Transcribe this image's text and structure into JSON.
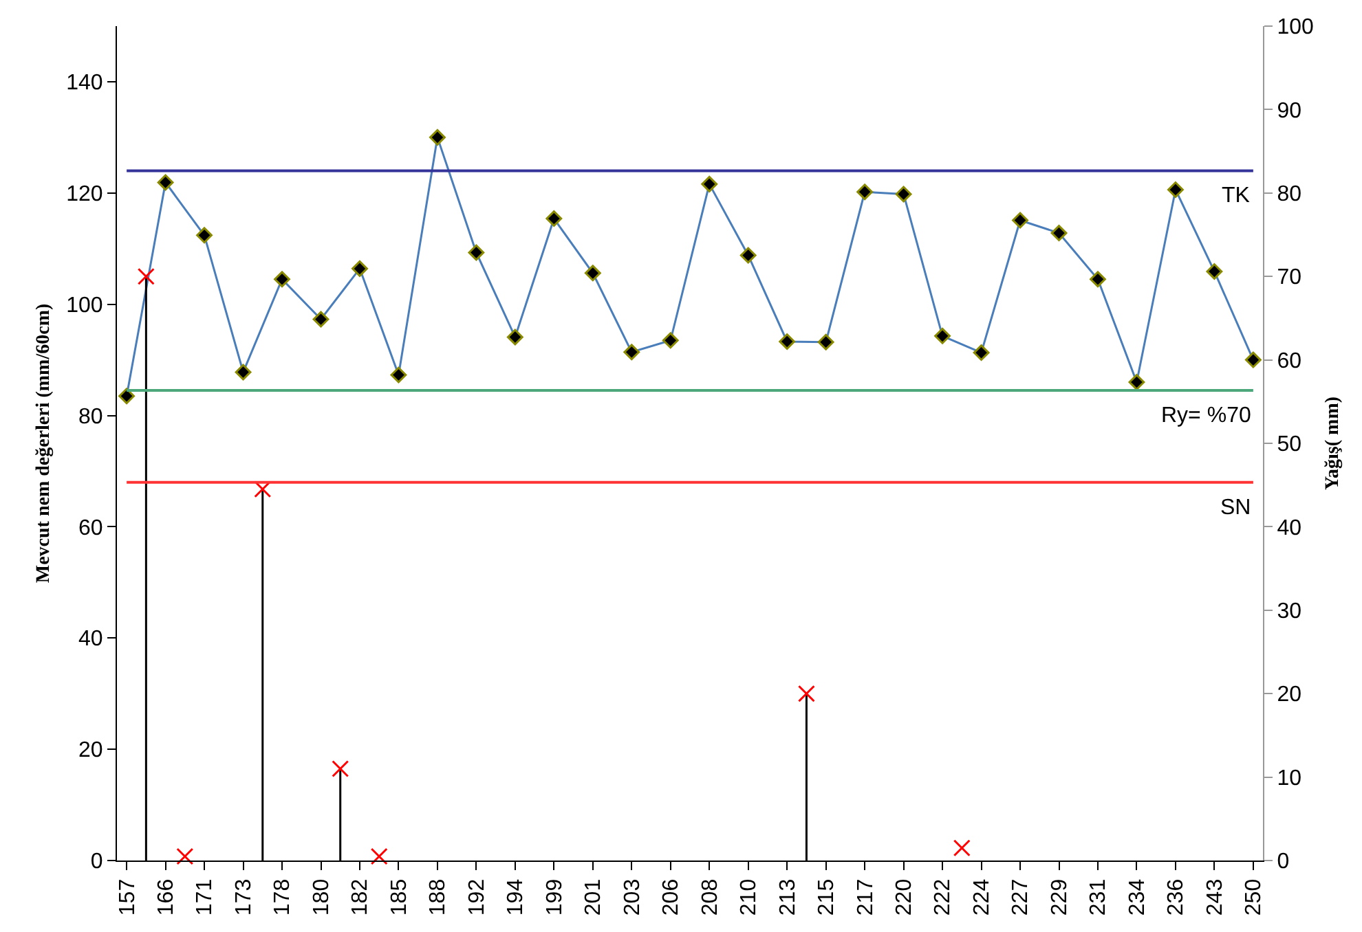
{
  "chart_data": {
    "type": "line",
    "ylabel": "Mevcut nem değerleri (mm/60cm)",
    "y2label": "Yağış( mm)",
    "categories": [
      "157",
      null,
      "166",
      null,
      "171",
      null,
      "173",
      null,
      "178",
      null,
      "180",
      null,
      "182",
      null,
      "185",
      null,
      "188",
      null,
      "192",
      null,
      "194",
      null,
      "199",
      null,
      "201",
      null,
      "203",
      null,
      "206",
      null,
      "208",
      null,
      "210",
      null,
      "213",
      null,
      "215",
      null,
      "217",
      null,
      "220",
      null,
      "222",
      null,
      "224",
      null,
      "227",
      null,
      "229",
      null,
      "231",
      null,
      "234",
      null,
      "236",
      null,
      "243",
      null,
      "250"
    ],
    "ylim": [
      0,
      150
    ],
    "yticks": [
      0,
      20,
      40,
      60,
      80,
      100,
      120,
      140
    ],
    "y2lim": [
      0,
      100
    ],
    "y2ticks": [
      0,
      10,
      20,
      30,
      40,
      50,
      60,
      70,
      80,
      90,
      100
    ],
    "series": [
      {
        "color": "#4a7ebb",
        "marker": "diamond",
        "x": [
          "157",
          "166",
          "171",
          "173",
          "178",
          "180",
          "182",
          "185",
          "188",
          "192",
          "194",
          "199",
          "201",
          "203",
          "206",
          "208",
          "210",
          "213",
          "215",
          "217",
          "220",
          "222",
          "224",
          "227",
          "229",
          "231",
          "234",
          "236",
          "243",
          "250"
        ],
        "values": [
          83.5,
          121.9,
          112.4,
          87.8,
          104.5,
          97.3,
          106.4,
          87.3,
          130.0,
          109.3,
          94.1,
          115.4,
          105.6,
          91.4,
          93.5,
          121.6,
          108.8,
          93.3,
          93.2,
          120.2,
          119.8,
          94.3,
          91.3,
          115.1,
          112.8,
          104.5,
          86.0,
          120.6,
          105.9,
          90.0
        ]
      },
      {
        "type": "scatter",
        "axis": "y2",
        "color": "#ff0000",
        "marker": "cross",
        "values": [
          null,
          70,
          null,
          0.5,
          null,
          null,
          null,
          44.5,
          null,
          null,
          null,
          11,
          null,
          0.5,
          null,
          null,
          null,
          null,
          null,
          null,
          null,
          null,
          null,
          null,
          null,
          null,
          null,
          null,
          null,
          null,
          null,
          null,
          null,
          null,
          null,
          20,
          null,
          null,
          null,
          null,
          null,
          null,
          null,
          1.5,
          null,
          null,
          null,
          null,
          null,
          null,
          null,
          null,
          null,
          null,
          null,
          null,
          null,
          null,
          null
        ],
        "errors": [
          null,
          [
            70,
            0
          ],
          null,
          null,
          null,
          null,
          null,
          [
            44.5,
            0
          ],
          null,
          null,
          null,
          [
            11,
            0
          ],
          null,
          null,
          null,
          null,
          null,
          null,
          null,
          null,
          null,
          null,
          null,
          null,
          null,
          null,
          null,
          null,
          null,
          null,
          null,
          null,
          null,
          null,
          null,
          [
            20,
            0
          ],
          null,
          null,
          null,
          null,
          null,
          null,
          null,
          null,
          null,
          null,
          null,
          null,
          null,
          null,
          null,
          null,
          null,
          null,
          null,
          null,
          null,
          null,
          null
        ]
      }
    ],
    "ref_lines": [
      {
        "axis": "y",
        "value": 124,
        "label": "TK",
        "color": "#333399"
      },
      {
        "axis": "y",
        "value": 84.5,
        "label": "Ry= %70",
        "color": "#4ca87a"
      },
      {
        "axis": "y",
        "value": 68,
        "label": "SN",
        "color": "#ff3333"
      }
    ]
  }
}
